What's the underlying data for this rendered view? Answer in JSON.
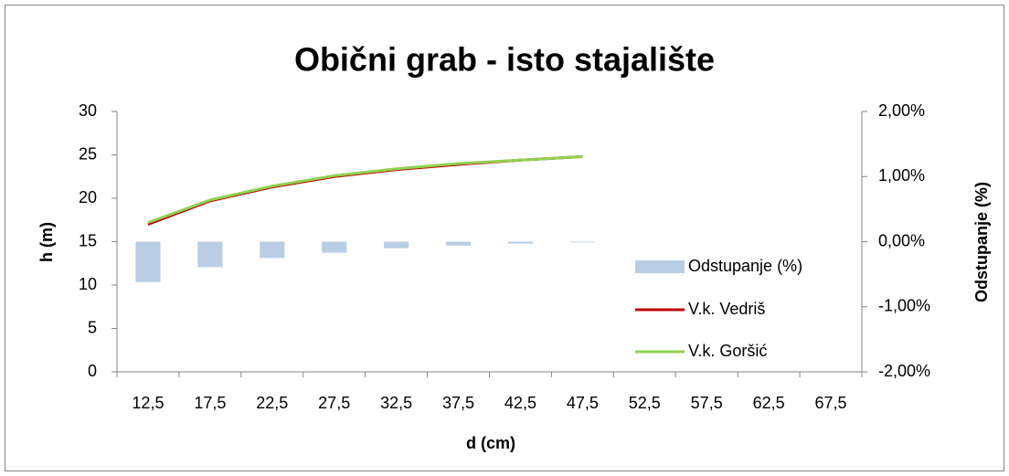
{
  "chart_data": {
    "type": "combo",
    "title": "Obični grab - isto stajalište",
    "x_label": "d (cm)",
    "y_label": "h (m)",
    "y2_label": "Odstupanje (%)",
    "categories": [
      "12,5",
      "17,5",
      "22,5",
      "27,5",
      "32,5",
      "37,5",
      "42,5",
      "47,5",
      "52,5",
      "57,5",
      "62,5",
      "67,5"
    ],
    "series": [
      {
        "name": "Odstupanje (%)",
        "type": "bar",
        "axis": "y2",
        "color": "#b9cde5",
        "values": [
          -0.62,
          -0.39,
          -0.25,
          -0.17,
          -0.1,
          -0.06,
          -0.03,
          -0.01,
          null,
          null,
          null,
          null
        ]
      },
      {
        "name": "V.k. Vedriš",
        "type": "line",
        "color": "#c00000",
        "values": [
          17.0,
          19.7,
          21.3,
          22.5,
          23.3,
          23.9,
          24.4,
          24.8,
          null,
          null,
          null,
          null
        ]
      },
      {
        "name": "V.k. Goršić",
        "type": "line",
        "color": "#92d050",
        "values": [
          17.2,
          19.8,
          21.4,
          22.6,
          23.4,
          24.0,
          24.4,
          24.8,
          null,
          null,
          null,
          null
        ]
      }
    ],
    "ylim": [
      0,
      30
    ],
    "yticks": [
      0,
      5,
      10,
      15,
      20,
      25,
      30
    ],
    "y2lim": [
      -2,
      2
    ],
    "y2ticks": [
      {
        "value": -2,
        "label": "-2,00%"
      },
      {
        "value": -1,
        "label": "-1,00%"
      },
      {
        "value": 0,
        "label": "0,00%"
      },
      {
        "value": 1,
        "label": "1,00%"
      },
      {
        "value": 2,
        "label": "2,00%"
      }
    ],
    "grid": false,
    "legend": "right"
  }
}
